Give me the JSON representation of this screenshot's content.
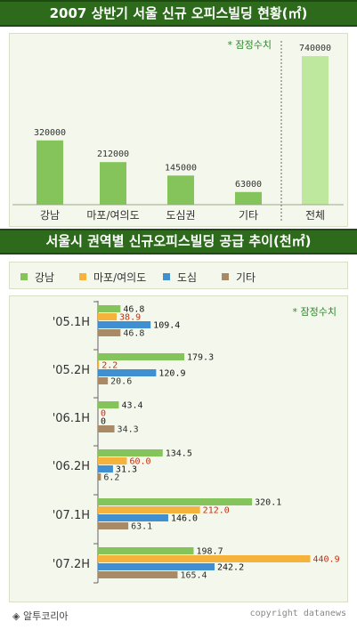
{
  "colors": {
    "header_bg": "#2d6a1c",
    "panel_bg": "#f4f7ec",
    "bar_green": "#84c45a",
    "bar_light_green": "#bde89e",
    "bar_orange": "#f6b33b",
    "bar_blue": "#3f8fd1",
    "bar_brown": "#a88a66",
    "note_green": "#2a8a2a"
  },
  "chart_data": [
    {
      "type": "bar",
      "title": "2007 상반기 서울 신규 오피스빌딩 현황(㎡)",
      "note": "* 잠정수치",
      "categories": [
        "강남",
        "마포/여의도",
        "도심권",
        "기타",
        "전체"
      ],
      "values": [
        320000,
        212000,
        145000,
        63000,
        740000
      ],
      "ylim": [
        0,
        820000
      ],
      "grid": false
    },
    {
      "type": "bar",
      "orientation": "horizontal",
      "title": "서울시 권역별 신규오피스빌딩 공급 추이(천㎡)",
      "note": "* 잠정수치",
      "categories": [
        "'05.1H",
        "'05.2H",
        "'06.1H",
        "'06.2H",
        "'07.1H",
        "'07.2H"
      ],
      "series": [
        {
          "name": "강남",
          "values": [
            46.8,
            179.3,
            43.4,
            134.5,
            320.1,
            198.7
          ]
        },
        {
          "name": "마포/여의도",
          "values": [
            38.9,
            2.2,
            0,
            60.0,
            212.0,
            440.9
          ]
        },
        {
          "name": "도심",
          "values": [
            109.4,
            120.9,
            0,
            31.3,
            146.0,
            242.2
          ]
        },
        {
          "name": "기타",
          "values": [
            46.8,
            20.6,
            34.3,
            6.2,
            63.1,
            165.4
          ]
        }
      ],
      "value_labels": [
        [
          "46.8",
          "38.9",
          "109.4",
          "46.8"
        ],
        [
          "179.3",
          "2.2",
          "120.9",
          "20.6"
        ],
        [
          "43.4",
          "0",
          "0",
          "34.3"
        ],
        [
          "134.5",
          "60.0",
          "31.3",
          "6.2"
        ],
        [
          "320.1",
          "212.0",
          "146.0",
          "63.1"
        ],
        [
          "198.7",
          "440.9",
          "242.2",
          "165.4"
        ]
      ],
      "xlim": [
        0,
        470
      ],
      "legend": "top"
    }
  ],
  "footer": {
    "source": "◈ 알투코리아",
    "copyright": "copyright datanews"
  }
}
